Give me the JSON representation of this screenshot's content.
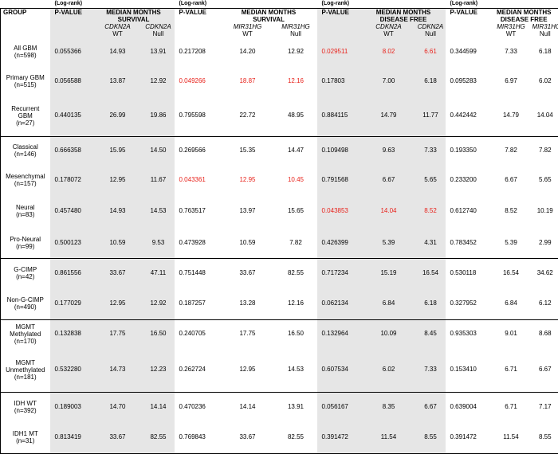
{
  "log_rank": "(Log-rank)",
  "header": {
    "group": "GROUP",
    "pvalue": "P-VALUE",
    "survival_1": "MEDIAN MONTHS\nSURVIVAL",
    "survival_2": "MEDIAN MONTHS\nSURVIVAL",
    "dfree_1": "MEDIAN MONTHS\nDISEASE FREE",
    "dfree_2": "MEDIAN MONTHS\nDISEASE FREE",
    "cdkn2a": "CDKN2A",
    "mir31hg": "MIR31HG",
    "wt": "WT",
    "null": "Null"
  },
  "rows": [
    {
      "group": "All GBM\n(n=598)",
      "v": [
        "0.055366",
        "14.93",
        "13.91",
        "0.217208",
        "14.20",
        "12.92",
        "0.029511",
        "8.02",
        "6.61",
        "0.344599",
        "7.33",
        "6.18"
      ],
      "red": [
        false,
        false,
        false,
        false,
        false,
        false,
        true,
        true,
        true,
        false,
        false,
        false
      ]
    },
    {
      "group": "Primary GBM\n(n=515)",
      "v": [
        "0.056588",
        "13.87",
        "12.92",
        "0.049266",
        "18.87",
        "12.16",
        "0.17803",
        "7.00",
        "6.18",
        "0.095283",
        "6.97",
        "6.02"
      ],
      "red": [
        false,
        false,
        false,
        true,
        true,
        true,
        false,
        false,
        false,
        false,
        false,
        false
      ]
    },
    {
      "group": "Recurrent\nGBM\n(n=27)",
      "v": [
        "0.440135",
        "26.99",
        "19.86",
        "0.795598",
        "22.72",
        "48.95",
        "0.884115",
        "14.79",
        "11.77",
        "0.442442",
        "14.79",
        "14.04"
      ],
      "red": [
        false,
        false,
        false,
        false,
        false,
        false,
        false,
        false,
        false,
        false,
        false,
        false
      ]
    },
    {
      "group": "Classical\n(n=146)",
      "v": [
        "0.666358",
        "15.95",
        "14.50",
        "0.269566",
        "15.35",
        "14.47",
        "0.109498",
        "9.63",
        "7.33",
        "0.193350",
        "7.82",
        "7.82"
      ],
      "red": [
        false,
        false,
        false,
        false,
        false,
        false,
        false,
        false,
        false,
        false,
        false,
        false
      ]
    },
    {
      "group": "Mesenchymal\n(n=157)",
      "v": [
        "0.178072",
        "12.95",
        "11.67",
        "0.043361",
        "12.95",
        "10.45",
        "0.791568",
        "6.67",
        "5.65",
        "0.233200",
        "6.67",
        "5.65"
      ],
      "red": [
        false,
        false,
        false,
        true,
        true,
        true,
        false,
        false,
        false,
        false,
        false,
        false
      ]
    },
    {
      "group": "Neural\n(n=83)",
      "v": [
        "0.457480",
        "14.93",
        "14.53",
        "0.763517",
        "13.97",
        "15.65",
        "0.043853",
        "14.04",
        "8.52",
        "0.612740",
        "8.52",
        "10.19"
      ],
      "red": [
        false,
        false,
        false,
        false,
        false,
        false,
        true,
        true,
        true,
        false,
        false,
        false
      ]
    },
    {
      "group": "Pro-Neural\n(n=99)",
      "v": [
        "0.500123",
        "10.59",
        "9.53",
        "0.473928",
        "10.59",
        "7.82",
        "0.426399",
        "5.39",
        "4.31",
        "0.783452",
        "5.39",
        "2.99"
      ],
      "red": [
        false,
        false,
        false,
        false,
        false,
        false,
        false,
        false,
        false,
        false,
        false,
        false
      ]
    },
    {
      "group": "G-CIMP\n(n=42)",
      "v": [
        "0.861556",
        "33.67",
        "47.11",
        "0.751448",
        "33.67",
        "82.55",
        "0.717234",
        "15.19",
        "16.54",
        "0.530118",
        "16.54",
        "34.62"
      ],
      "red": [
        false,
        false,
        false,
        false,
        false,
        false,
        false,
        false,
        false,
        false,
        false,
        false
      ]
    },
    {
      "group": "Non-G-CIMP\n(n=490)",
      "v": [
        "0.177029",
        "12.95",
        "12.92",
        "0.187257",
        "13.28",
        "12.16",
        "0.062134",
        "6.84",
        "6.18",
        "0.327952",
        "6.84",
        "6.12"
      ],
      "red": [
        false,
        false,
        false,
        false,
        false,
        false,
        false,
        false,
        false,
        false,
        false,
        false
      ]
    },
    {
      "group": "MGMT\nMethylated\n(n=170)",
      "v": [
        "0.132838",
        "17.75",
        "16.50",
        "0.240705",
        "17.75",
        "16.50",
        "0.132964",
        "10.09",
        "8.45",
        "0.935303",
        "9.01",
        "8.68"
      ],
      "red": [
        false,
        false,
        false,
        false,
        false,
        false,
        false,
        false,
        false,
        false,
        false,
        false
      ]
    },
    {
      "group": "MGMT\nUnmethylated\n(n=181)",
      "v": [
        "0.532280",
        "14.73",
        "12.23",
        "0.262724",
        "12.95",
        "14.53",
        "0.607534",
        "6.02",
        "7.33",
        "0.153410",
        "6.71",
        "6.67"
      ],
      "red": [
        false,
        false,
        false,
        false,
        false,
        false,
        false,
        false,
        false,
        false,
        false,
        false
      ]
    },
    {
      "group": "IDH WT\n(n=392)",
      "v": [
        "0.189003",
        "14.70",
        "14.14",
        "0.470236",
        "14.14",
        "13.91",
        "0.056167",
        "8.35",
        "6.67",
        "0.639004",
        "6.71",
        "7.17"
      ],
      "red": [
        false,
        false,
        false,
        false,
        false,
        false,
        false,
        false,
        false,
        false,
        false,
        false
      ]
    },
    {
      "group": "IDH1 MT\n(n=31)",
      "v": [
        "0.813419",
        "33.67",
        "82.55",
        "0.769843",
        "33.67",
        "82.55",
        "0.391472",
        "11.54",
        "8.55",
        "0.391472",
        "11.54",
        "8.55"
      ],
      "red": [
        false,
        false,
        false,
        false,
        false,
        false,
        false,
        false,
        false,
        false,
        false,
        false
      ]
    }
  ]
}
